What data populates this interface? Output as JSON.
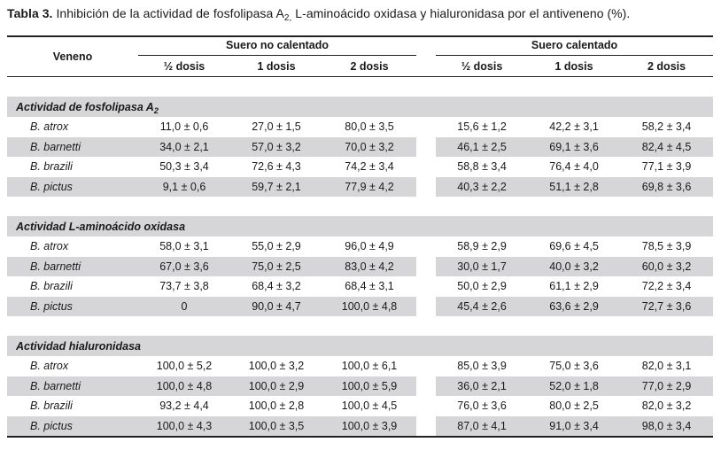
{
  "caption": {
    "label": "Tabla 3.",
    "text_main": " Inhibición de la actividad de fosfolipasa A",
    "text_sub": "2,",
    "text_tail": " L-aminoácido oxidasa y hialuronidasa por el antiveneno (%)."
  },
  "header": {
    "veneno": "Veneno",
    "group1": "Suero no calentado",
    "group2": "Suero calentado",
    "doses": [
      "½ dosis",
      "1 dosis",
      "2 dosis",
      "½ dosis",
      "1 dosis",
      "2 dosis"
    ]
  },
  "sections": [
    {
      "title": "Actividad de fosfolipasa A",
      "title_sub": "2",
      "rows": [
        {
          "species": "B. atrox",
          "values": [
            "11,0 ± 0,6",
            "27,0 ± 1,5",
            "80,0 ± 3,5",
            "15,6 ± 1,2",
            "42,2 ± 3,1",
            "58,2 ± 3,4"
          ]
        },
        {
          "species": "B. barnetti",
          "values": [
            "34,0 ± 2,1",
            "57,0 ± 3,2",
            "70,0 ± 3,2",
            "46,1 ± 2,5",
            "69,1 ± 3,6",
            "82,4 ± 4,5"
          ]
        },
        {
          "species": "B. brazili",
          "values": [
            "50,3 ± 3,4",
            "72,6 ± 4,3",
            "74,2 ± 3,4",
            "58,8 ± 3,4",
            "76,4 ± 4,0",
            "77,1 ± 3,9"
          ]
        },
        {
          "species": "B. pictus",
          "values": [
            "9,1 ± 0,6",
            "59,7 ± 2,1",
            "77,9 ± 4,2",
            "40,3 ± 2,2",
            "51,1 ± 2,8",
            "69,8 ± 3,6"
          ]
        }
      ]
    },
    {
      "title": "Actividad L-aminoácido oxidasa",
      "title_sub": "",
      "rows": [
        {
          "species": "B. atrox",
          "values": [
            "58,0 ± 3,1",
            "55,0 ± 2,9",
            "96,0 ± 4,9",
            "58,9 ± 2,9",
            "69,6 ± 4,5",
            "78,5 ± 3,9"
          ]
        },
        {
          "species": "B. barnetti",
          "values": [
            "67,0 ± 3,6",
            "75,0 ± 2,5",
            "83,0 ± 4,2",
            "30,0 ± 1,7",
            "40,0 ± 3,2",
            "60,0 ± 3,2"
          ]
        },
        {
          "species": "B. brazili",
          "values": [
            "73,7 ± 3,8",
            "68,4 ± 3,2",
            "68,4 ± 3,1",
            "50,0 ± 2,9",
            "61,1 ± 2,9",
            "72,2 ± 3,4"
          ]
        },
        {
          "species": "B. pictus",
          "values": [
            "0",
            "90,0 ± 4,7",
            "100,0 ± 4,8",
            "45,4 ± 2,6",
            "63,6 ± 2,9",
            "72,7 ± 3,6"
          ]
        }
      ]
    },
    {
      "title": "Actividad hialuronidasa",
      "title_sub": "",
      "rows": [
        {
          "species": "B. atrox",
          "values": [
            "100,0 ± 5,2",
            "100,0 ± 3,2",
            "100,0 ± 6,1",
            "85,0 ± 3,9",
            "75,0 ± 3,6",
            "82,0 ± 3,1"
          ]
        },
        {
          "species": "B. barnetti",
          "values": [
            "100,0 ± 4,8",
            "100,0 ± 2,9",
            "100,0 ± 5,9",
            "36,0 ± 2,1",
            "52,0 ± 1,8",
            "77,0 ± 2,9"
          ]
        },
        {
          "species": "B. brazili",
          "values": [
            "93,2 ± 4,4",
            "100,0 ± 2,8",
            "100,0 ± 4,5",
            "76,0 ± 3,6",
            "80,0 ± 2,5",
            "82,0 ± 3,2"
          ]
        },
        {
          "species": "B. pictus",
          "values": [
            "100,0 ± 4,3",
            "100,0 ± 3,5",
            "100,0 ± 3,9",
            "87,0 ± 4,1",
            "91,0 ± 3,4",
            "98,0 ± 3,4"
          ]
        }
      ]
    }
  ]
}
